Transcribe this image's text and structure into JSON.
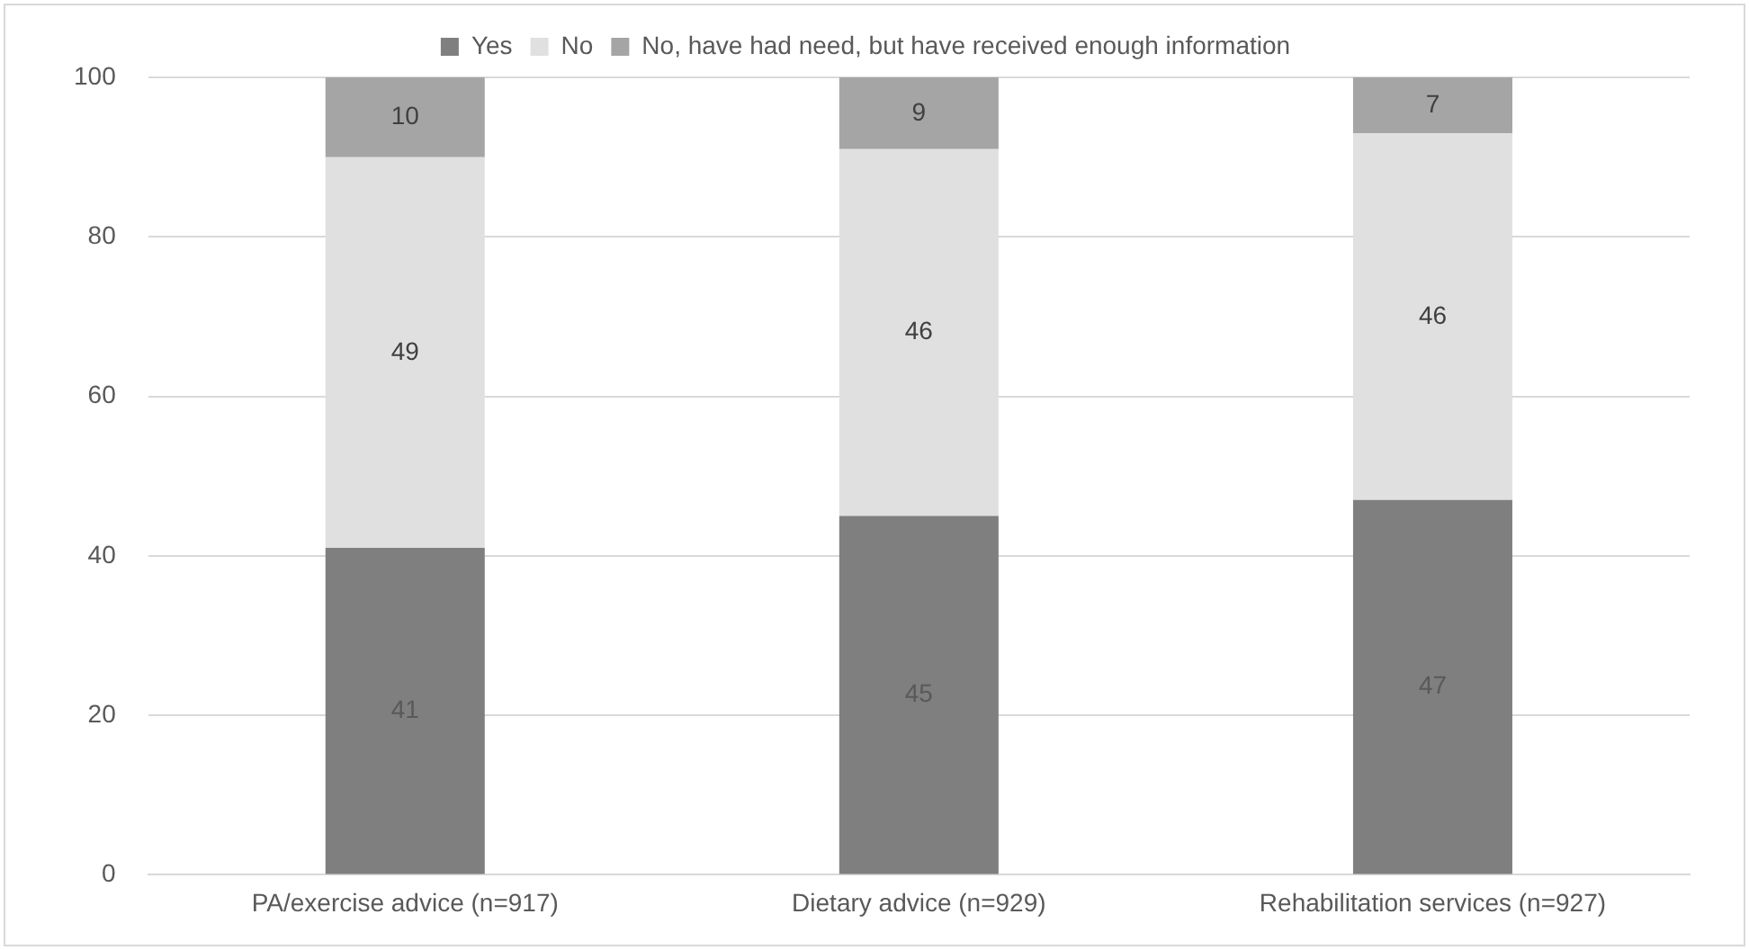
{
  "chart_data": {
    "type": "bar",
    "stacked": true,
    "categories": [
      "PA/exercise advice (n=917)",
      "Dietary advice (n=929)",
      "Rehabilitation services (n=927)"
    ],
    "series": [
      {
        "name": "Yes",
        "color": "#7f7f7f",
        "values": [
          41,
          45,
          47
        ]
      },
      {
        "name": "No",
        "color": "#e0e0e0",
        "values": [
          49,
          46,
          46
        ]
      },
      {
        "name": "No, have had need, but have received enough information",
        "color": "#a5a5a5",
        "values": [
          10,
          9,
          7
        ]
      }
    ],
    "ylim": [
      0,
      100
    ],
    "yticks": [
      0,
      20,
      40,
      60,
      80,
      100
    ],
    "grid": "y",
    "legend": "top",
    "data_labels": true
  }
}
